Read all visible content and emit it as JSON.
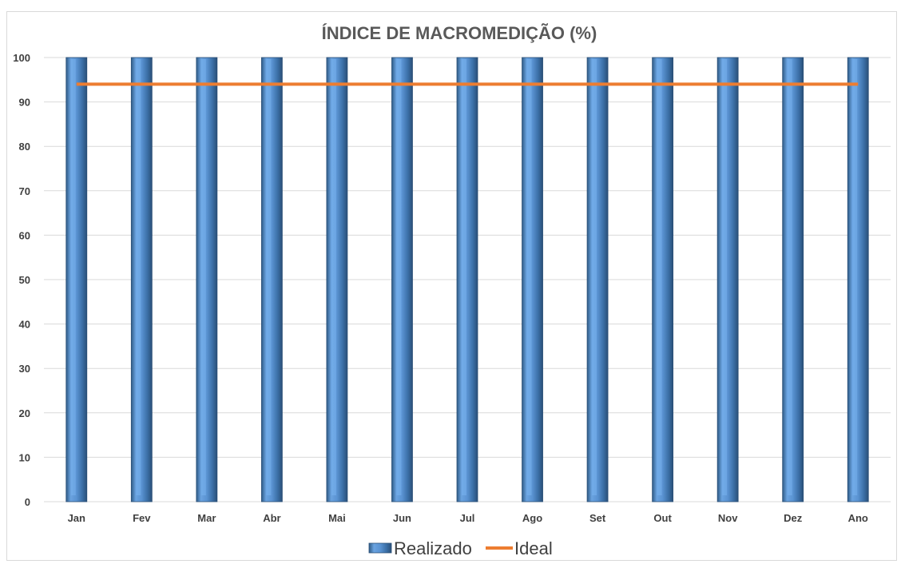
{
  "chart_data": {
    "type": "bar",
    "title": "ÍNDICE DE MACROMEDIÇÃO (%)",
    "categories": [
      "Jan",
      "Fev",
      "Mar",
      "Abr",
      "Mai",
      "Jun",
      "Jul",
      "Ago",
      "Set",
      "Out",
      "Nov",
      "Dez",
      "Ano"
    ],
    "series": [
      {
        "name": "Realizado",
        "type": "bar",
        "values": [
          100,
          100,
          100,
          100,
          100,
          100,
          100,
          100,
          100,
          100,
          100,
          100,
          100
        ],
        "color": "#4f81bd"
      },
      {
        "name": "Ideal",
        "type": "line",
        "values": [
          94,
          94,
          94,
          94,
          94,
          94,
          94,
          94,
          94,
          94,
          94,
          94,
          94
        ],
        "color": "#ed7d31"
      }
    ],
    "xlabel": "",
    "ylabel": "",
    "ylim": [
      0,
      100
    ],
    "yticks": [
      0,
      10,
      20,
      30,
      40,
      50,
      60,
      70,
      80,
      90,
      100
    ],
    "grid": true,
    "legend": "bottom"
  }
}
